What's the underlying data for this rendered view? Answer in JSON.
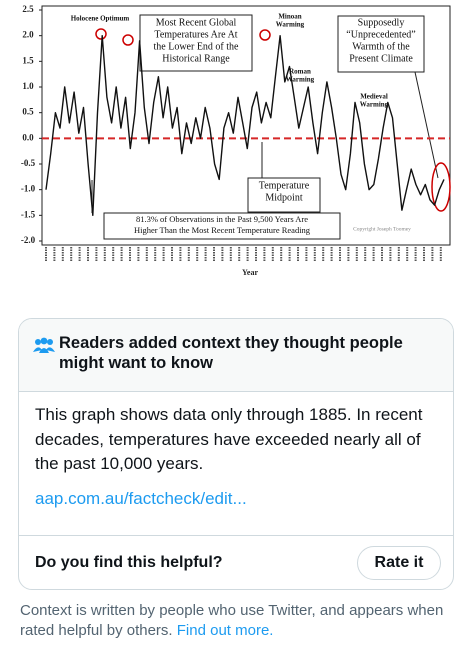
{
  "chart_data": {
    "type": "line",
    "values": [
      -1.0,
      -0.3,
      0.5,
      0.2,
      1.0,
      0.3,
      0.9,
      0.1,
      0.6,
      -0.5,
      -1.5,
      0.5,
      2.0,
      0.8,
      0.3,
      1.0,
      0.2,
      0.8,
      -0.2,
      0.5,
      1.9,
      0.6,
      -0.1,
      0.7,
      1.2,
      0.4,
      1.0,
      0.2,
      0.6,
      -0.3,
      0.3,
      -0.1,
      0.4,
      0.0,
      0.6,
      0.2,
      -0.5,
      -0.8,
      0.2,
      0.5,
      0.1,
      0.8,
      0.3,
      -0.2,
      0.6,
      0.9,
      0.3,
      0.7,
      0.4,
      1.2,
      2.0,
      1.1,
      1.4,
      0.8,
      0.2,
      0.6,
      1.0,
      0.3,
      -0.3,
      0.5,
      1.1,
      0.6,
      0.0,
      -0.7,
      -1.0,
      -0.3,
      0.7,
      0.3,
      -0.5,
      -1.0,
      -0.9,
      -0.4,
      0.2,
      0.7,
      0.4,
      -0.5,
      -1.4,
      -1.0,
      -0.6,
      -0.9,
      -1.1,
      -0.9,
      -1.2,
      -1.3,
      -1.0,
      -0.8
    ],
    "color": "#111111",
    "ylim": [
      -2.0,
      2.5
    ],
    "yticks": [
      {
        "value": -2.0,
        "label": "-2.0"
      },
      -1.5,
      {
        "value": -1.0,
        "label": "-1.0"
      },
      -0.5,
      {
        "value": 0.0,
        "label": "0.0"
      },
      0.5,
      {
        "value": 1.0,
        "label": "1.0"
      },
      1.5,
      {
        "value": 2.0,
        "label": "2.0"
      },
      2.5
    ],
    "reference_line": {
      "value": 0.0,
      "color": "#d62728"
    },
    "xlabel": "Year",
    "annotations": [
      {
        "lines": [
          "Holocene Optimum"
        ]
      },
      {
        "lines": [
          "Most Recent Global",
          "Temperatures Are At",
          "the Lower End of the",
          "Historical Range"
        ]
      },
      {
        "lines": [
          "Minoan",
          "Warming"
        ]
      },
      {
        "lines": [
          "Supposedly",
          "“Unprecedented”",
          "Warmth of the",
          "Present Climate"
        ]
      },
      {
        "lines": [
          "Roman",
          "Warming"
        ]
      },
      {
        "lines": [
          "Medieval",
          "Warming"
        ]
      },
      {
        "lines": [
          "Temperature",
          "Midpoint"
        ]
      },
      {
        "lines": [
          "81.3% of Observations in the Past 9,500 Years Are",
          "Higher Than the Most Recent Temperature Reading"
        ]
      },
      {
        "lines": [
          "Copyright Joseph Toomey"
        ]
      }
    ]
  },
  "note": {
    "heading": "Readers added context they thought people might want to know",
    "body": "This graph shows data only through 1885. In recent decades, temperatures have exceeded nearly all of the past 10,000 years.",
    "link": "aap.com.au/factcheck/edit...",
    "question": "Do you find this helpful?",
    "button": "Rate it"
  },
  "footer": {
    "text": "Context is written by people who use Twitter, and appears when rated helpful by others.",
    "link": "Find out more."
  }
}
